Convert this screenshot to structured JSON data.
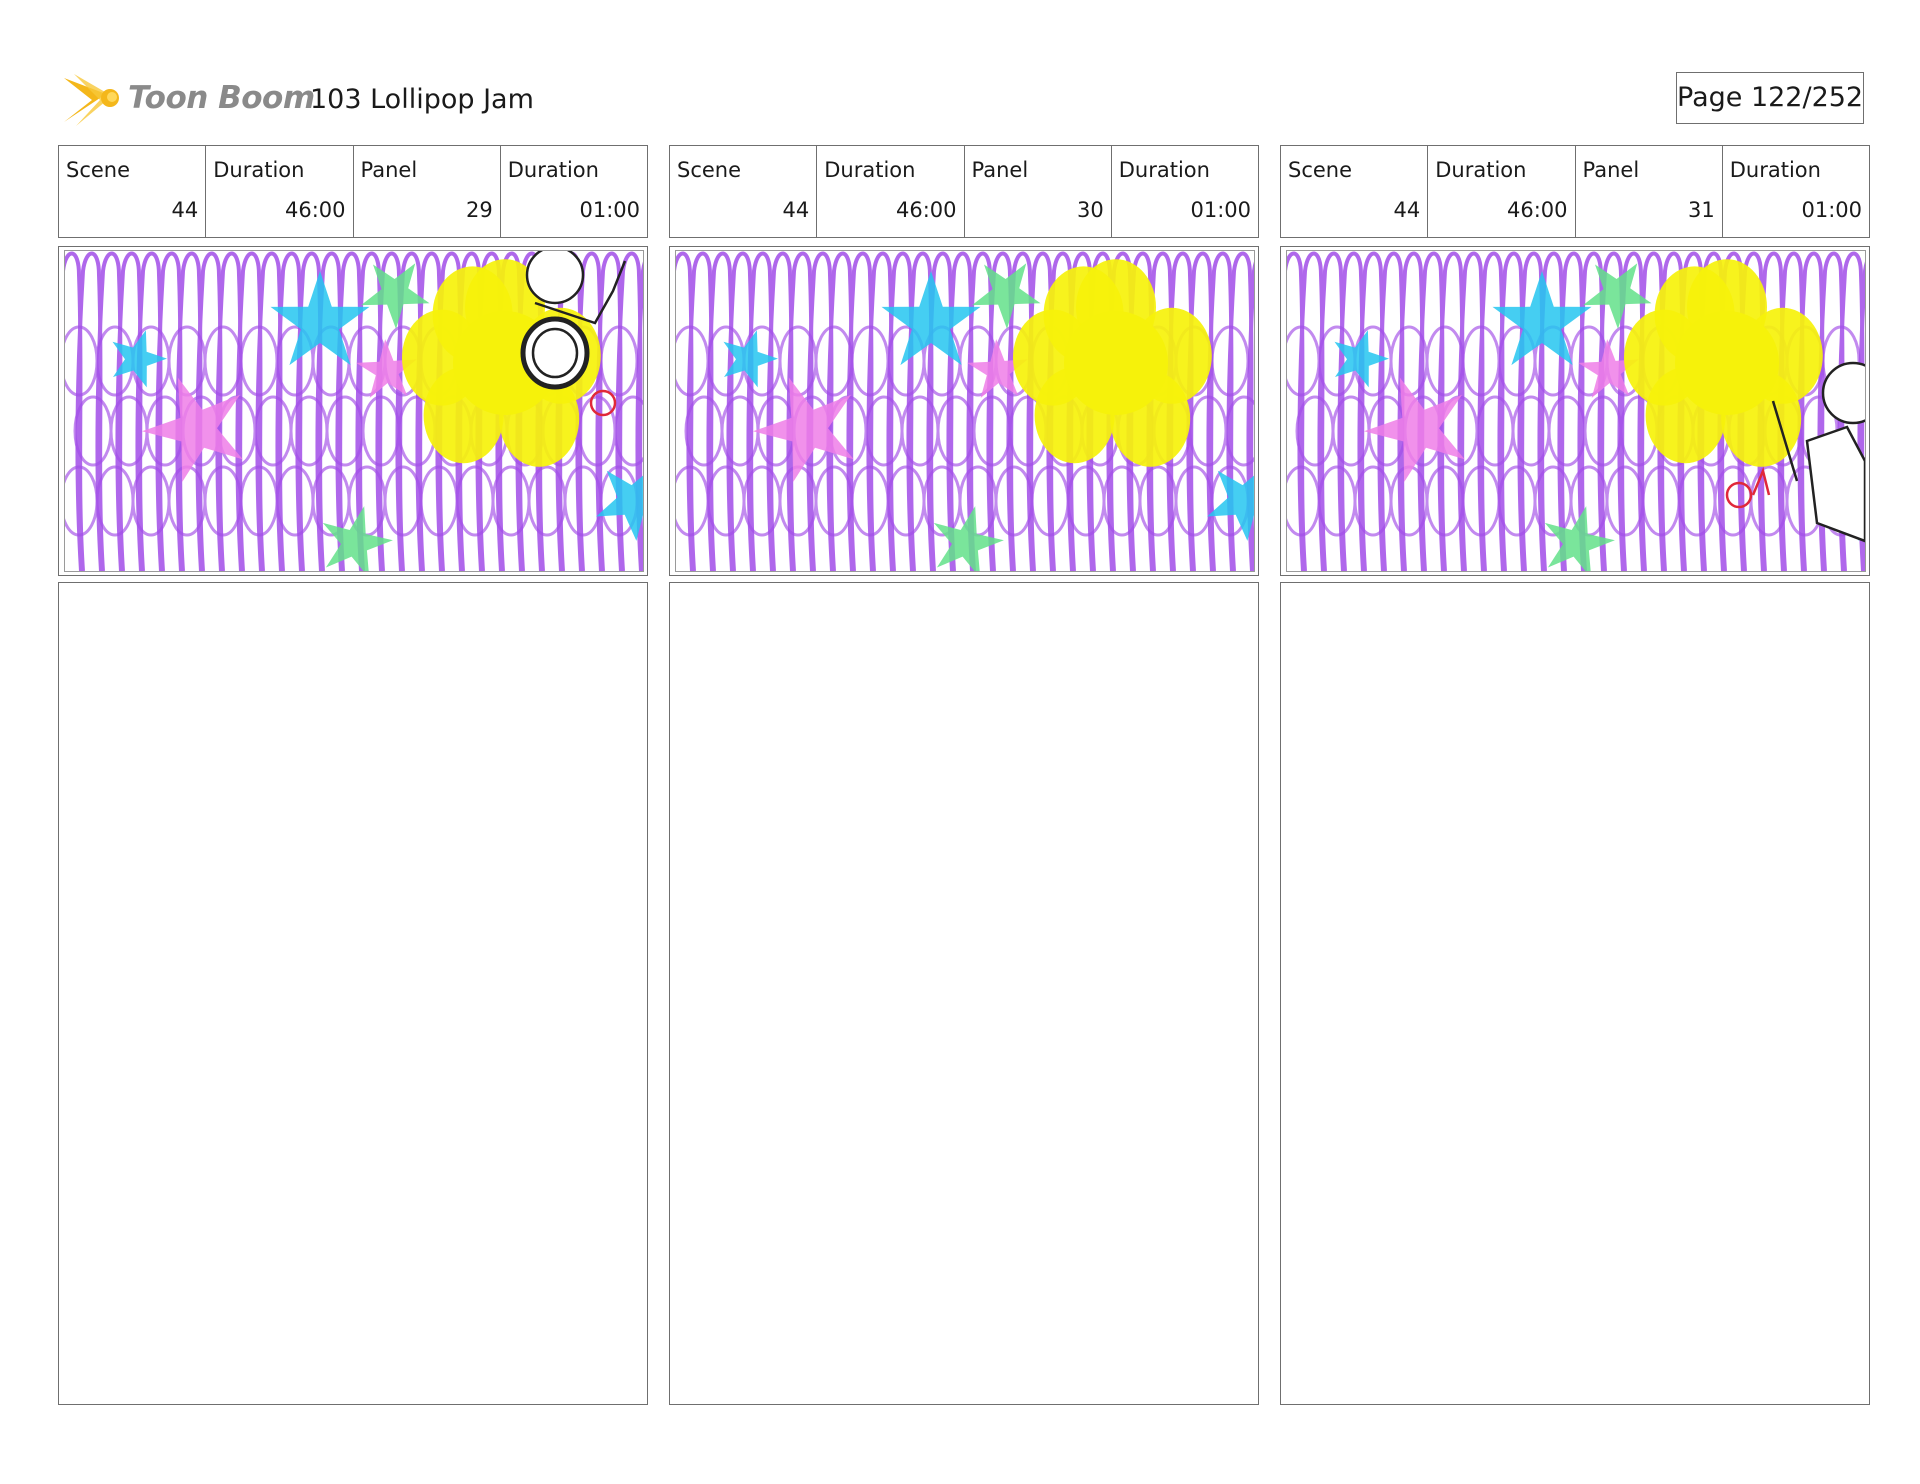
{
  "header": {
    "logo_text": "Toon Boom",
    "title": "103 Lollipop Jam",
    "page": "Page 122/252"
  },
  "labels": {
    "scene": "Scene",
    "duration": "Duration",
    "panel": "Panel",
    "panel_duration": "Duration"
  },
  "panels": [
    {
      "scene": "44",
      "scene_duration": "46:00",
      "panel": "29",
      "panel_duration": "01:00"
    },
    {
      "scene": "44",
      "scene_duration": "46:00",
      "panel": "30",
      "panel_duration": "01:00"
    },
    {
      "scene": "44",
      "scene_duration": "46:00",
      "panel": "31",
      "panel_duration": "01:00"
    }
  ],
  "colors": {
    "scribble": "#a24de8",
    "yellow": "#f6f20a",
    "cyan": "#24c6f0",
    "pink": "#ef7ee8",
    "green": "#63e08a",
    "logo_orange": "#f4b71a"
  }
}
